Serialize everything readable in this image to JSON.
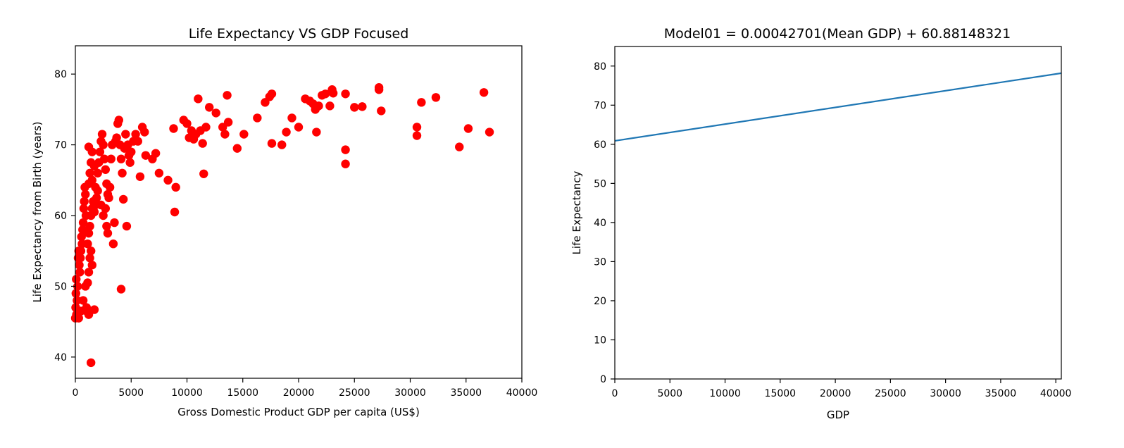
{
  "chart_data": [
    {
      "type": "scatter",
      "title": "Life Expectancy VS GDP Focused",
      "xlabel": "Gross Domestic Product GDP per capita (US$)",
      "ylabel": "Life Expectancy from Birth (years)",
      "xlim": [
        0,
        40000
      ],
      "ylim": [
        37,
        84
      ],
      "xticks": [
        0,
        5000,
        10000,
        15000,
        20000,
        25000,
        30000,
        35000,
        40000
      ],
      "yticks": [
        40,
        50,
        60,
        70,
        80
      ],
      "grid": false,
      "marker_color": "#ff0000",
      "series": [
        {
          "points": [
            [
              0,
              45.5
            ],
            [
              30,
              47
            ],
            [
              50,
              49
            ],
            [
              80,
              51
            ],
            [
              100,
              46
            ],
            [
              150,
              48
            ],
            [
              200,
              50
            ],
            [
              250,
              54
            ],
            [
              300,
              55
            ],
            [
              350,
              53
            ],
            [
              400,
              52
            ],
            [
              450,
              54
            ],
            [
              500,
              55
            ],
            [
              550,
              57
            ],
            [
              600,
              56
            ],
            [
              650,
              58
            ],
            [
              700,
              59
            ],
            [
              750,
              61
            ],
            [
              800,
              62
            ],
            [
              850,
              64
            ],
            [
              900,
              63
            ],
            [
              950,
              60
            ],
            [
              300,
              45.5
            ],
            [
              500,
              46.5
            ],
            [
              700,
              48
            ],
            [
              900,
              50
            ],
            [
              1000,
              47
            ],
            [
              1100,
              50.5
            ],
            [
              1200,
              52
            ],
            [
              1300,
              54
            ],
            [
              1400,
              55
            ],
            [
              1500,
              53
            ],
            [
              1000,
              46.5
            ],
            [
              1200,
              46
            ],
            [
              1700,
              46.7
            ],
            [
              1400,
              39.2
            ],
            [
              1100,
              56
            ],
            [
              1200,
              57.5
            ],
            [
              1300,
              58.5
            ],
            [
              1400,
              60
            ],
            [
              1500,
              61
            ],
            [
              1600,
              62
            ],
            [
              1700,
              60.5
            ],
            [
              1800,
              61.5
            ],
            [
              1900,
              62.5
            ],
            [
              2000,
              63.5
            ],
            [
              1200,
              64.5
            ],
            [
              1300,
              66
            ],
            [
              1400,
              67.5
            ],
            [
              1500,
              65
            ],
            [
              1200,
              69.7
            ],
            [
              1500,
              69
            ],
            [
              1700,
              67
            ],
            [
              1800,
              64
            ],
            [
              2000,
              66
            ],
            [
              2100,
              67.5
            ],
            [
              2200,
              69
            ],
            [
              2300,
              70.5
            ],
            [
              2400,
              71.5
            ],
            [
              2500,
              70
            ],
            [
              2600,
              68
            ],
            [
              2700,
              66.5
            ],
            [
              2800,
              64.5
            ],
            [
              2900,
              63
            ],
            [
              2300,
              61.5
            ],
            [
              2500,
              60
            ],
            [
              2700,
              61
            ],
            [
              2800,
              58.5
            ],
            [
              2900,
              57.5
            ],
            [
              3000,
              62.5
            ],
            [
              3100,
              64
            ],
            [
              3200,
              68
            ],
            [
              3300,
              70
            ],
            [
              3400,
              56
            ],
            [
              3500,
              59
            ],
            [
              3600,
              70.5
            ],
            [
              3700,
              71
            ],
            [
              3800,
              73
            ],
            [
              3900,
              73.5
            ],
            [
              4000,
              70
            ],
            [
              4100,
              68
            ],
            [
              4200,
              66
            ],
            [
              4300,
              62.3
            ],
            [
              4400,
              69.5
            ],
            [
              4500,
              71.5
            ],
            [
              4600,
              58.5
            ],
            [
              4700,
              70
            ],
            [
              4800,
              68.5
            ],
            [
              4900,
              67.5
            ],
            [
              5000,
              69
            ],
            [
              4100,
              49.6
            ],
            [
              5200,
              70.5
            ],
            [
              5400,
              71.5
            ],
            [
              5600,
              70.5
            ],
            [
              5800,
              65.5
            ],
            [
              6000,
              72.5
            ],
            [
              6200,
              71.8
            ],
            [
              6300,
              68.5
            ],
            [
              6900,
              68
            ],
            [
              7200,
              68.8
            ],
            [
              7500,
              66
            ],
            [
              8300,
              65
            ],
            [
              8800,
              72.3
            ],
            [
              9000,
              64
            ],
            [
              8900,
              60.5
            ],
            [
              9700,
              73.5
            ],
            [
              10000,
              73
            ],
            [
              10200,
              71
            ],
            [
              10400,
              72
            ],
            [
              10600,
              70.8
            ],
            [
              10800,
              71.5
            ],
            [
              11000,
              76.5
            ],
            [
              11200,
              72
            ],
            [
              11400,
              70.2
            ],
            [
              11500,
              65.9
            ],
            [
              11700,
              72.5
            ],
            [
              12000,
              75.3
            ],
            [
              12600,
              74.5
            ],
            [
              13200,
              72.5
            ],
            [
              13400,
              71.5
            ],
            [
              13700,
              73.2
            ],
            [
              13600,
              77
            ],
            [
              14500,
              69.5
            ],
            [
              15100,
              71.5
            ],
            [
              16300,
              73.8
            ],
            [
              17000,
              76
            ],
            [
              17400,
              76.8
            ],
            [
              17600,
              77.2
            ],
            [
              17600,
              70.2
            ],
            [
              18500,
              70
            ],
            [
              18900,
              71.8
            ],
            [
              19400,
              73.8
            ],
            [
              20000,
              72.5
            ],
            [
              20600,
              76.5
            ],
            [
              21000,
              76.2
            ],
            [
              21300,
              75.8
            ],
            [
              21500,
              75
            ],
            [
              21600,
              71.8
            ],
            [
              21800,
              75.5
            ],
            [
              22100,
              77
            ],
            [
              22400,
              77.2
            ],
            [
              22800,
              75.5
            ],
            [
              23000,
              77.8
            ],
            [
              23100,
              77.3
            ],
            [
              24200,
              77.2
            ],
            [
              24200,
              69.3
            ],
            [
              24200,
              67.3
            ],
            [
              25000,
              75.3
            ],
            [
              25700,
              75.4
            ],
            [
              27200,
              77.8
            ],
            [
              27200,
              78.1
            ],
            [
              27400,
              74.8
            ],
            [
              30600,
              72.5
            ],
            [
              30600,
              71.3
            ],
            [
              31000,
              76
            ],
            [
              32300,
              76.7
            ],
            [
              34400,
              69.7
            ],
            [
              35200,
              72.3
            ],
            [
              36600,
              77.4
            ],
            [
              37100,
              71.8
            ]
          ]
        }
      ]
    },
    {
      "type": "line",
      "title": "Model01 = 0.00042701(Mean GDP) + 60.88148321",
      "xlabel": "GDP",
      "ylabel": "Life Expectancy",
      "xlim": [
        0,
        40500
      ],
      "ylim": [
        0,
        85
      ],
      "xticks": [
        0,
        5000,
        10000,
        15000,
        20000,
        25000,
        30000,
        35000,
        40000
      ],
      "yticks": [
        0,
        10,
        20,
        30,
        40,
        50,
        60,
        70,
        80
      ],
      "grid": false,
      "line_color": "#1f77b4",
      "series": [
        {
          "x": [
            0,
            40500
          ],
          "y": [
            60.88148321,
            78.1754
          ]
        }
      ]
    }
  ]
}
